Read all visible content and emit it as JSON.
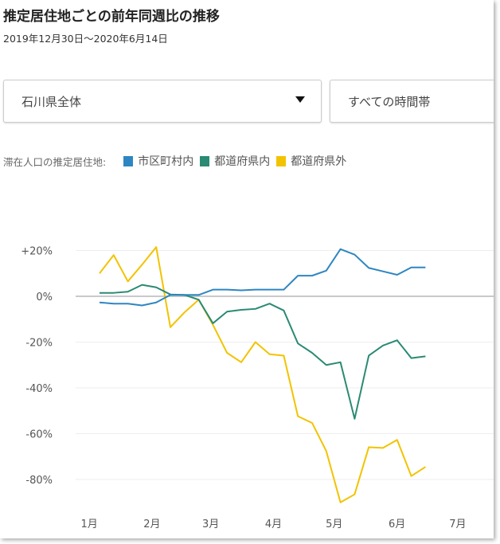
{
  "title": "推定居住地ごとの前年同週比の推移",
  "subtitle": "2019年12月30日～2020年6月14日",
  "filters": {
    "area": "石川県全体",
    "time": "すべての時間帯"
  },
  "legend": {
    "label": "滞在人口の推定居住地:"
  },
  "chart_data": {
    "type": "line",
    "title": "推定居住地ごとの前年同週比の推移",
    "x_start": "2019-12-30",
    "x_step_days": 7,
    "x_ticks": [
      {
        "label": "1月",
        "day": 2
      },
      {
        "label": "2月",
        "day": 33
      },
      {
        "label": "3月",
        "day": 62
      },
      {
        "label": "4月",
        "day": 93
      },
      {
        "label": "5月",
        "day": 123
      },
      {
        "label": "6月",
        "day": 154
      },
      {
        "label": "7月",
        "day": 184
      }
    ],
    "y_ticks": [
      {
        "label": "+20%",
        "v": 20
      },
      {
        "label": "0%",
        "v": 0
      },
      {
        "label": "-20%",
        "v": -20
      },
      {
        "label": "-40%",
        "v": -40
      },
      {
        "label": "-60%",
        "v": -60
      },
      {
        "label": "-80%",
        "v": -80
      }
    ],
    "ylim": [
      -95,
      32
    ],
    "series": [
      {
        "name": "市区町村内",
        "color": "#2e86c1",
        "values": [
          -2.7,
          -3.2,
          -3.2,
          -4,
          -2.7,
          0.6,
          0.6,
          0.6,
          2.9,
          2.9,
          2.6,
          2.9,
          2.9,
          2.9,
          9,
          9,
          11.2,
          20.6,
          18.2,
          12.4,
          10.9,
          9.4,
          12.6,
          12.6
        ]
      },
      {
        "name": "都道府県内",
        "color": "#2a8a73",
        "values": [
          1.5,
          1.5,
          2,
          5,
          3.9,
          0.8,
          0.6,
          -1.5,
          -11.8,
          -6.7,
          -5.9,
          -5.5,
          -3.2,
          -6.2,
          -20.6,
          -24.7,
          -30,
          -28.8,
          -53.5,
          -25.9,
          -21.5,
          -19.2,
          -27,
          -26.2
        ]
      },
      {
        "name": "都道府県外",
        "color": "#f2c300",
        "values": [
          10,
          18,
          6.5,
          13.8,
          21.5,
          -13.5,
          -7,
          -1.5,
          -12.4,
          -24.7,
          -28.8,
          -20,
          -25.3,
          -25.9,
          -52.4,
          -55.3,
          -67.6,
          -90,
          -86.5,
          -65.9,
          -66.2,
          -62.7,
          -78.5,
          -74.5
        ]
      }
    ]
  }
}
